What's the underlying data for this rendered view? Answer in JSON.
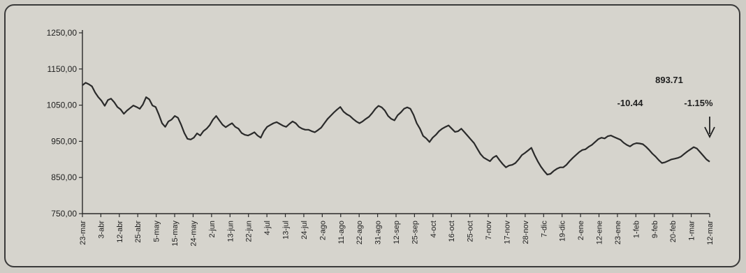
{
  "chart_data": {
    "type": "line",
    "title": "",
    "xlabel": "",
    "ylabel": "",
    "ylim": [
      750,
      1250
    ],
    "grid": false,
    "yticks": [
      "1250,00",
      "1150,00",
      "1050,00",
      "950,00",
      "850,00",
      "750,00"
    ],
    "ytick_values": [
      1250,
      1150,
      1050,
      950,
      850,
      750
    ],
    "x_ticks": [
      "23-mar",
      "3-abr",
      "12-abr",
      "25-abr",
      "5-may",
      "15-may",
      "24-may",
      "2-jun",
      "13-jun",
      "22-jun",
      "4-jul",
      "13-jul",
      "24-jul",
      "2-ago",
      "11-ago",
      "22-ago",
      "31-ago",
      "12-sep",
      "25-sep",
      "4-oct",
      "16-oct",
      "25-oct",
      "7-nov",
      "17-nov",
      "28-nov",
      "7-dic",
      "19-dic",
      "2-ene",
      "12-ene",
      "23-ene",
      "1-feb",
      "9-feb",
      "20-feb",
      "1-mar",
      "12-mar"
    ],
    "annotations": {
      "last_value": "893.71",
      "change": "-10.44",
      "change_pct": "-1.15%"
    },
    "series": [
      {
        "values": [
          1105,
          1112,
          1108,
          1102,
          1085,
          1072,
          1062,
          1048,
          1064,
          1068,
          1058,
          1045,
          1038,
          1026,
          1035,
          1042,
          1049,
          1045,
          1040,
          1052,
          1072,
          1066,
          1049,
          1045,
          1024,
          1000,
          990,
          1005,
          1010,
          1020,
          1015,
          996,
          973,
          957,
          955,
          960,
          972,
          966,
          978,
          985,
          995,
          1010,
          1020,
          1008,
          996,
          989,
          995,
          1000,
          990,
          985,
          973,
          968,
          966,
          970,
          975,
          966,
          960,
          978,
          990,
          995,
          1000,
          1003,
          998,
          993,
          990,
          998,
          1005,
          1000,
          990,
          985,
          982,
          982,
          978,
          975,
          981,
          988,
          1000,
          1012,
          1021,
          1030,
          1038,
          1045,
          1032,
          1025,
          1020,
          1012,
          1005,
          1000,
          1005,
          1012,
          1018,
          1028,
          1040,
          1048,
          1044,
          1035,
          1020,
          1012,
          1008,
          1022,
          1030,
          1040,
          1044,
          1040,
          1023,
          1000,
          985,
          965,
          958,
          948,
          960,
          968,
          978,
          985,
          990,
          994,
          985,
          976,
          978,
          985,
          975,
          965,
          955,
          945,
          930,
          915,
          905,
          900,
          895,
          905,
          910,
          898,
          887,
          878,
          883,
          885,
          890,
          900,
          912,
          918,
          925,
          932,
          912,
          895,
          880,
          868,
          858,
          860,
          868,
          874,
          878,
          878,
          885,
          895,
          904,
          912,
          920,
          926,
          928,
          935,
          940,
          948,
          956,
          960,
          958,
          964,
          966,
          962,
          958,
          954,
          946,
          940,
          936,
          942,
          945,
          944,
          942,
          935,
          926,
          916,
          908,
          898,
          890,
          892,
          896,
          900,
          902,
          904,
          908,
          915,
          922,
          928,
          934,
          930,
          920,
          910,
          900,
          893.71
        ]
      }
    ]
  }
}
